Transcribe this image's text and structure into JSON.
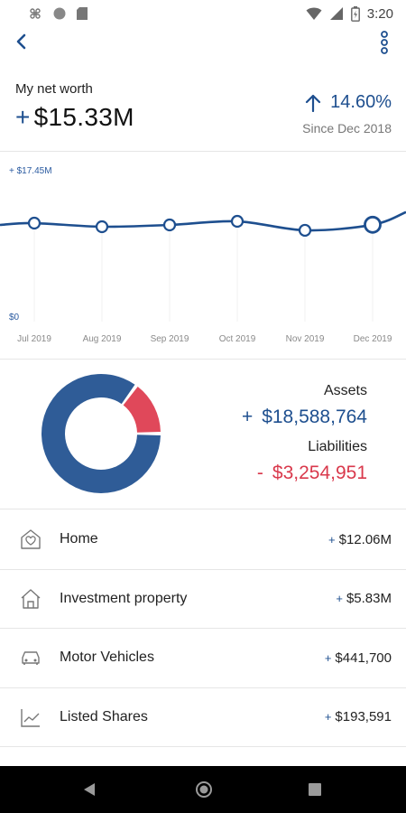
{
  "status_bar": {
    "time": "3:20",
    "icons": [
      "command-icon",
      "circle-icon",
      "sd-card-icon",
      "wifi-icon",
      "signal-icon",
      "battery-icon"
    ]
  },
  "app_bar": {
    "icons": [
      "back-chevron-icon",
      "more-vert-icon"
    ]
  },
  "summary": {
    "label": "My net worth",
    "sign": "+",
    "value": "$15.33M",
    "change_percent": "14.60%",
    "since": "Since Dec 2018",
    "accent_color": "#1e4f8f"
  },
  "chart_data": {
    "type": "line",
    "x": [
      "Jul 2019",
      "Aug 2019",
      "Sep 2019",
      "Oct 2019",
      "Nov 2019",
      "Dec 2019"
    ],
    "series": [
      {
        "values": [
          15.6,
          15.0,
          15.3,
          15.9,
          14.4,
          15.33
        ]
      }
    ],
    "y_top_label": "+ $17.45M",
    "y_bottom_label": "$0",
    "ylim": [
      0,
      17.45
    ],
    "ylabel": "",
    "xlabel": "",
    "grid": false,
    "line_color": "#1e4f8f"
  },
  "breakdown": {
    "assets_label": "Assets",
    "assets_sign": "+",
    "assets_value": "$18,588,764",
    "liabilities_label": "Liabilities",
    "liabilities_sign": "-",
    "liabilities_value": "$3,254,951",
    "donut": {
      "assets": 18588764,
      "liabilities": 3254951,
      "assets_color": "#2f5c97",
      "liabilities_color": "#e0485a"
    }
  },
  "items": [
    {
      "icon": "home-heart-icon",
      "label": "Home",
      "sign": "+",
      "value": "$12.06M"
    },
    {
      "icon": "house-icon",
      "label": "Investment property",
      "sign": "+",
      "value": "$5.83M"
    },
    {
      "icon": "car-icon",
      "label": "Motor Vehicles",
      "sign": "+",
      "value": "$441,700"
    },
    {
      "icon": "stock-chart-icon",
      "label": "Listed Shares",
      "sign": "+",
      "value": "$193,591"
    }
  ],
  "nav_bar": {
    "icons": [
      "nav-back-icon",
      "nav-home-icon",
      "nav-recents-icon"
    ]
  }
}
